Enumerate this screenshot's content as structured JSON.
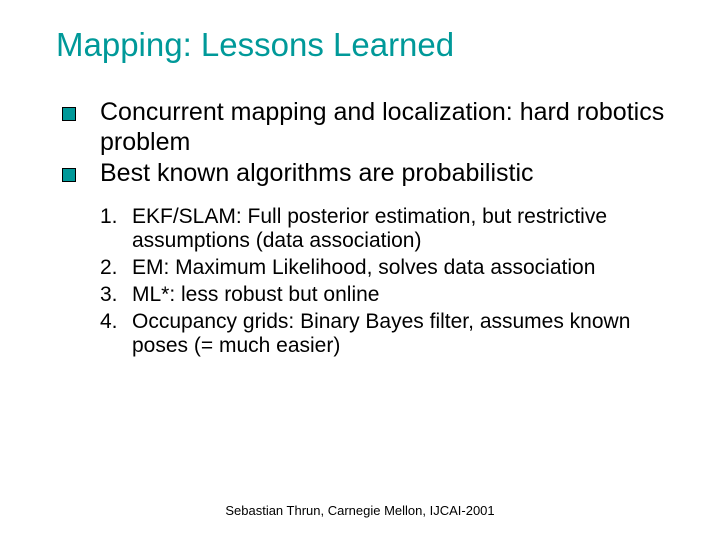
{
  "title": "Mapping: Lessons Learned",
  "title_color": "#009999",
  "bullet_color": "#009999",
  "text_color": "#000000",
  "background_color": "#ffffff",
  "title_fontsize": 33,
  "body_fontsize": 25,
  "sub_fontsize": 21,
  "footer_fontsize": 13,
  "bullets": [
    {
      "text": "Concurrent mapping and localization: hard robotics problem"
    },
    {
      "text": "Best known algorithms are probabilistic"
    }
  ],
  "numbered": [
    {
      "n": "1.",
      "text": "EKF/SLAM: Full posterior estimation, but restrictive assumptions (data association)"
    },
    {
      "n": "2.",
      "text": "EM: Maximum Likelihood, solves data association"
    },
    {
      "n": "3.",
      "text": "ML*: less robust but online"
    },
    {
      "n": "4.",
      "text": "Occupancy grids: Binary Bayes filter, assumes known poses (= much easier)"
    }
  ],
  "footer": "Sebastian Thrun, Carnegie Mellon, IJCAI-2001"
}
